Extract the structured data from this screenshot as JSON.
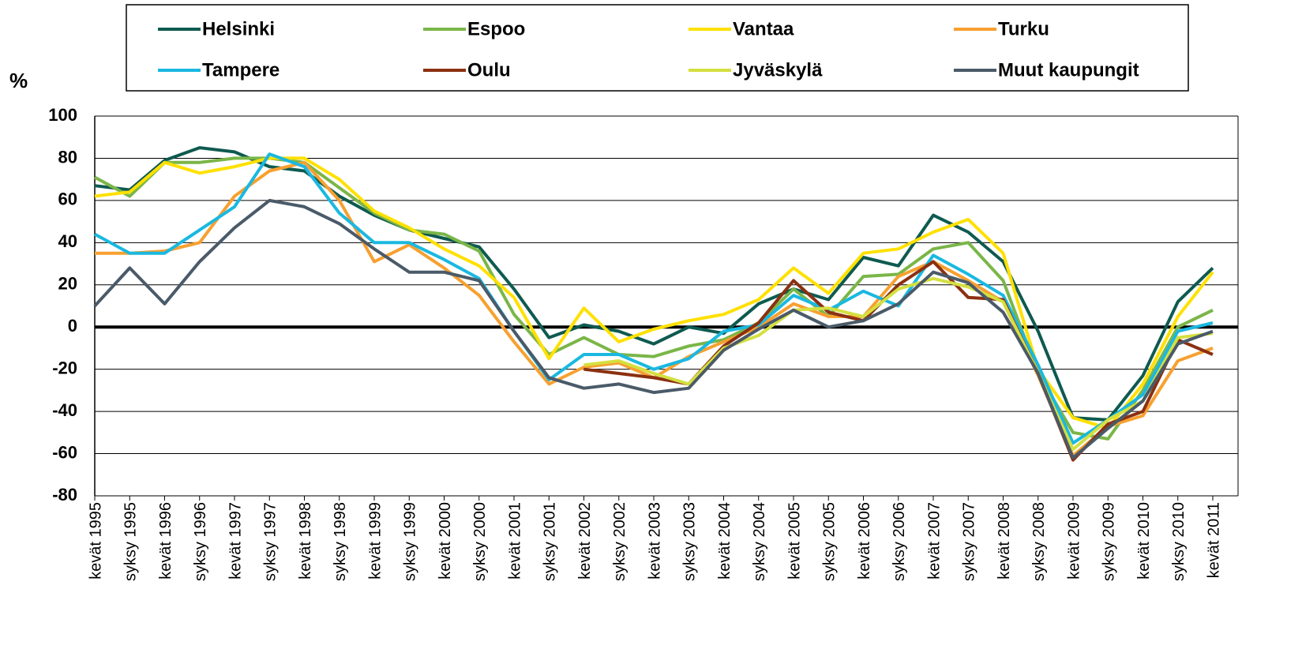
{
  "chart_data": {
    "type": "line",
    "y_label": "%",
    "categories": [
      "kevät 1995",
      "syksy 1995",
      "kevät 1996",
      "syksy 1996",
      "kevät 1997",
      "syksy 1997",
      "kevät 1998",
      "syksy 1998",
      "kevät 1999",
      "syksy 1999",
      "kevät 2000",
      "syksy 2000",
      "kevät 2001",
      "syksy 2001",
      "kevät 2002",
      "syksy 2002",
      "kevät 2003",
      "syksy 2003",
      "kevät 2004",
      "syksy 2004",
      "kevät 2005",
      "syksy 2005",
      "kevät 2006",
      "syksy 2006",
      "kevät 2007",
      "syksy 2007",
      "kevät 2008",
      "syksy 2008",
      "kevät 2009",
      "syksy 2009",
      "kevät 2010",
      "syksy 2010",
      "kevät 2011"
    ],
    "series": [
      {
        "name": "Helsinki",
        "color": "#0e5a50",
        "values": [
          67,
          65,
          79,
          85,
          83,
          76,
          74,
          62,
          53,
          46,
          42,
          38,
          18,
          -5,
          1,
          -2,
          -8,
          0,
          -3,
          11,
          18,
          13,
          33,
          29,
          53,
          45,
          31,
          -2,
          -43,
          -44,
          -23,
          12,
          28
        ]
      },
      {
        "name": "Espoo",
        "color": "#7ab648",
        "values": [
          71,
          62,
          78,
          78,
          80,
          80,
          78,
          66,
          54,
          46,
          44,
          36,
          6,
          -13,
          -5,
          -13,
          -14,
          -9,
          -6,
          2,
          18,
          5,
          24,
          25,
          37,
          40,
          22,
          -22,
          -50,
          -53,
          -30,
          0,
          8
        ]
      },
      {
        "name": "Vantaa",
        "color": "#ffe000",
        "values": [
          62,
          64,
          78,
          73,
          76,
          80,
          80,
          70,
          55,
          47,
          37,
          29,
          14,
          -15,
          9,
          -7,
          -1,
          3,
          6,
          13,
          28,
          16,
          35,
          37,
          45,
          51,
          35,
          -20,
          -43,
          -48,
          -27,
          5,
          26
        ]
      },
      {
        "name": "Turku",
        "color": "#f7a030",
        "values": [
          35,
          35,
          36,
          40,
          62,
          74,
          78,
          60,
          31,
          39,
          28,
          15,
          -7,
          -27,
          -19,
          -17,
          -24,
          -14,
          -7,
          0,
          11,
          5,
          5,
          24,
          31,
          22,
          12,
          -23,
          -61,
          -47,
          -42,
          -16,
          -10
        ]
      },
      {
        "name": "Tampere",
        "color": "#1ab8e0",
        "values": [
          44,
          35,
          35,
          46,
          57,
          82,
          76,
          54,
          40,
          40,
          32,
          23,
          -2,
          -25,
          -13,
          -13,
          -20,
          -15,
          -2,
          1,
          15,
          8,
          17,
          10,
          34,
          25,
          15,
          -18,
          -55,
          -44,
          -32,
          -2,
          2
        ]
      },
      {
        "name": "Oulu",
        "color": "#8b3010",
        "values": [
          null,
          null,
          null,
          null,
          null,
          null,
          null,
          null,
          null,
          null,
          null,
          null,
          null,
          null,
          -20,
          -22,
          -24,
          -27,
          -9,
          2,
          22,
          7,
          3,
          20,
          31,
          14,
          13,
          -22,
          -63,
          -46,
          -40,
          -6,
          -13
        ]
      },
      {
        "name": "Jyväskylä",
        "color": "#d4e040",
        "values": [
          null,
          null,
          null,
          null,
          null,
          null,
          null,
          null,
          null,
          null,
          null,
          null,
          null,
          null,
          -18,
          -16,
          -22,
          -27,
          -10,
          -4,
          8,
          9,
          5,
          18,
          23,
          19,
          12,
          -22,
          -58,
          -44,
          -35,
          -5,
          -3
        ]
      },
      {
        "name": "Muut kaupungit",
        "color": "#4a5a68",
        "values": [
          10,
          28,
          11,
          31,
          47,
          60,
          57,
          49,
          37,
          26,
          26,
          22,
          -2,
          -24,
          -29,
          -27,
          -31,
          -29,
          -11,
          -1,
          8,
          0,
          3,
          11,
          26,
          21,
          7,
          -22,
          -62,
          -48,
          -35,
          -8,
          -2
        ]
      }
    ],
    "ylim": [
      -80,
      100
    ],
    "yticks": [
      -80,
      -60,
      -40,
      -20,
      0,
      20,
      40,
      60,
      80,
      100
    ],
    "grid": true,
    "legend": "top"
  }
}
